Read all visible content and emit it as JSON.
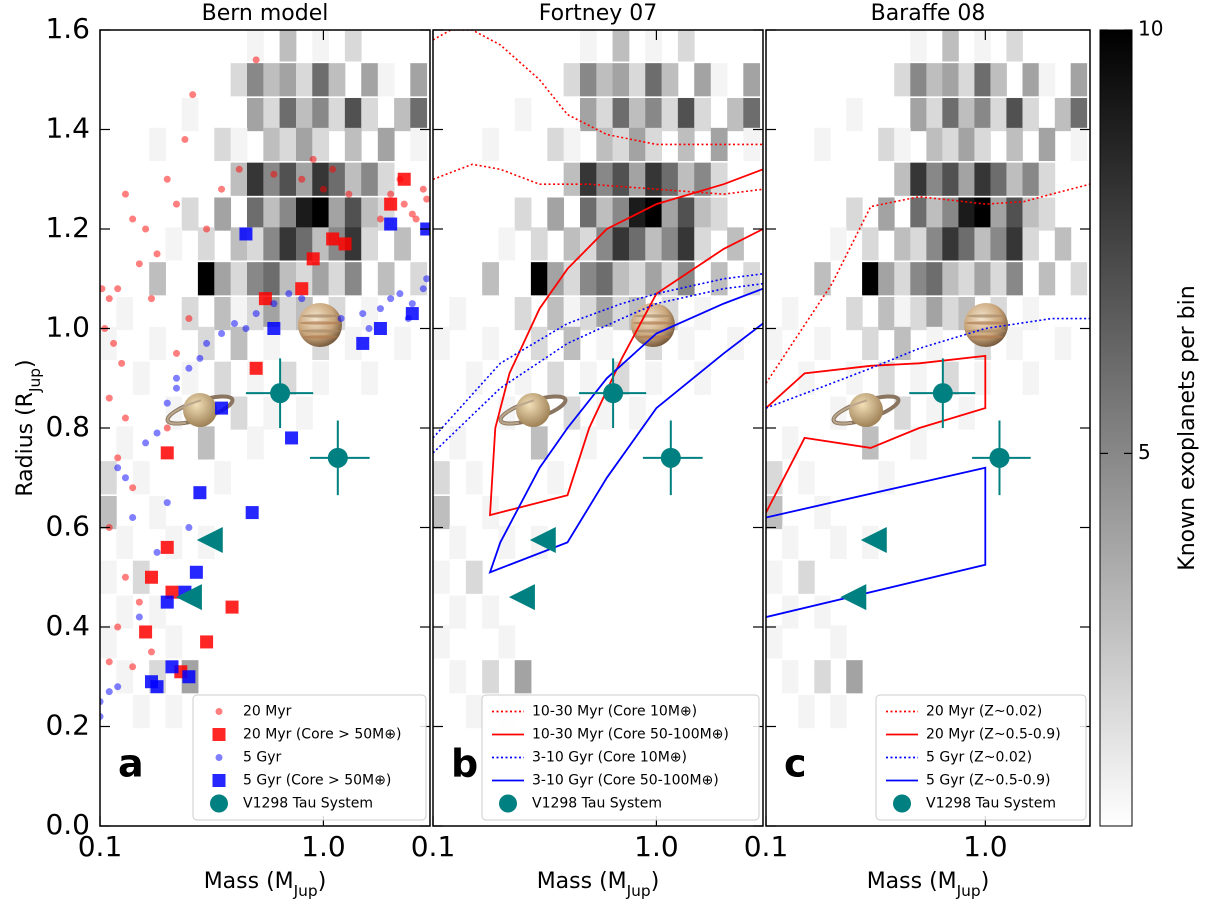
{
  "colorbar": {
    "label": "Known exoplanets per bin",
    "clim": [
      0.6,
      10
    ],
    "ticks": [
      5,
      10
    ],
    "cmap_low": "#ffffff",
    "cmap_high": "#000000"
  },
  "heatmap": {
    "mass": [
      0.496,
      0.694,
      0.972,
      1.36,
      0.419,
      0.496,
      0.587,
      0.694,
      0.822,
      0.972,
      1.15,
      1.61,
      1.91,
      2.67,
      0.253,
      0.496,
      0.587,
      0.694,
      0.822,
      0.972,
      1.15,
      1.36,
      1.61,
      2.26,
      2.67,
      0.181,
      0.354,
      0.419,
      0.587,
      0.694,
      0.822,
      0.972,
      1.36,
      1.91,
      2.67,
      0.419,
      0.496,
      0.587,
      0.694,
      0.822,
      0.972,
      1.15,
      1.36,
      1.61,
      1.91,
      0.253,
      0.354,
      0.496,
      0.587,
      0.694,
      0.822,
      0.972,
      1.15,
      1.36,
      1.61,
      1.91,
      0.214,
      0.299,
      0.419,
      0.496,
      0.587,
      0.694,
      0.822,
      0.972,
      1.15,
      1.36,
      1.61,
      2.26,
      0.181,
      0.299,
      0.354,
      0.419,
      0.496,
      0.587,
      0.694,
      0.822,
      0.972,
      1.15,
      1.36,
      1.91,
      2.67,
      0.129,
      0.253,
      0.354,
      0.419,
      0.496,
      0.587,
      0.694,
      0.822,
      1.15,
      1.61,
      0.109,
      0.181,
      0.299,
      0.419,
      0.587,
      0.972,
      1.36,
      2.26,
      0.153,
      0.253,
      0.354,
      0.496,
      0.694,
      0.972,
      1.61,
      0.214,
      0.419,
      0.587,
      0.822,
      0.129,
      0.299,
      0.496,
      0.109,
      0.153,
      0.354,
      0.109,
      0.181,
      0.129,
      0.214,
      0.299,
      0.109,
      0.153,
      0.129,
      0.181,
      0.109,
      0.214,
      0.129,
      0.181,
      0.253,
      0.153,
      0.214
    ],
    "radius": [
      1.57,
      1.57,
      1.57,
      1.57,
      1.5,
      1.5,
      1.5,
      1.5,
      1.5,
      1.5,
      1.5,
      1.5,
      1.5,
      1.5,
      1.43,
      1.43,
      1.43,
      1.43,
      1.43,
      1.43,
      1.43,
      1.43,
      1.43,
      1.43,
      1.43,
      1.37,
      1.37,
      1.37,
      1.37,
      1.37,
      1.37,
      1.37,
      1.37,
      1.37,
      1.37,
      1.3,
      1.3,
      1.3,
      1.3,
      1.3,
      1.3,
      1.3,
      1.3,
      1.3,
      1.3,
      1.23,
      1.23,
      1.23,
      1.23,
      1.23,
      1.23,
      1.23,
      1.23,
      1.23,
      1.23,
      1.23,
      1.17,
      1.17,
      1.17,
      1.17,
      1.17,
      1.17,
      1.17,
      1.17,
      1.17,
      1.17,
      1.17,
      1.17,
      1.1,
      1.1,
      1.1,
      1.1,
      1.1,
      1.1,
      1.1,
      1.1,
      1.1,
      1.1,
      1.1,
      1.1,
      1.1,
      1.03,
      1.03,
      1.03,
      1.03,
      1.03,
      1.03,
      1.03,
      1.03,
      1.03,
      1.03,
      0.97,
      0.97,
      0.97,
      0.97,
      0.97,
      0.97,
      0.97,
      0.97,
      0.9,
      0.9,
      0.9,
      0.9,
      0.9,
      0.9,
      0.9,
      0.83,
      0.83,
      0.83,
      0.83,
      0.77,
      0.77,
      0.77,
      0.7,
      0.7,
      0.7,
      0.63,
      0.63,
      0.57,
      0.57,
      0.57,
      0.5,
      0.5,
      0.43,
      0.43,
      0.37,
      0.37,
      0.3,
      0.3,
      0.3,
      0.23,
      0.23
    ],
    "counts": [
      1,
      3,
      1,
      2,
      2,
      5,
      3,
      4,
      2,
      6,
      3,
      4,
      1,
      4,
      1,
      4,
      2,
      6,
      3,
      5,
      2,
      7,
      2,
      3,
      6,
      1,
      2,
      1,
      3,
      2,
      4,
      2,
      3,
      4,
      1,
      3,
      8,
      5,
      7,
      4,
      8,
      6,
      3,
      5,
      2,
      2,
      4,
      6,
      3,
      5,
      9,
      10,
      4,
      7,
      3,
      2,
      1,
      2,
      3,
      2,
      5,
      8,
      6,
      3,
      5,
      8,
      2,
      3,
      3,
      10,
      4,
      2,
      5,
      6,
      3,
      2,
      4,
      2,
      5,
      3,
      2,
      1,
      2,
      3,
      1,
      2,
      4,
      2,
      3,
      2,
      1,
      1,
      1,
      2,
      3,
      1,
      2,
      1,
      1,
      1,
      1,
      2,
      1,
      2,
      1,
      1,
      1,
      2,
      1,
      1,
      1,
      3,
      1,
      2,
      1,
      1,
      3,
      1,
      1,
      1,
      1,
      1,
      2,
      1,
      1,
      1,
      1,
      1,
      2,
      4,
      1,
      1
    ]
  },
  "chart_data": [
    {
      "type": "scatter",
      "title": "Bern model",
      "label": "a",
      "xlabel": [
        "Mass (M",
        "Jup",
        ")"
      ],
      "ylabel": [
        "Radius (R",
        "Jup",
        ")"
      ],
      "xlim": [
        0.1,
        3
      ],
      "ylim": [
        0,
        1.6
      ],
      "log_x": true,
      "xticks": [
        0.1,
        {
          "value": 1,
          "label": "1.0"
        }
      ],
      "yticks": [
        {
          "value": 0,
          "label": "0.0"
        },
        0.2,
        0.4,
        0.6,
        0.8,
        {
          "value": 1,
          "label": "1.0"
        },
        1.2,
        1.4,
        1.6
      ],
      "legend": "lower right",
      "series": [
        {
          "name": "20 Myr",
          "marker": "circle",
          "color": "#ff0000",
          "alpha": 0.5,
          "x": [
            0.102,
            0.11,
            0.12,
            0.105,
            0.115,
            0.13,
            0.14,
            0.125,
            0.11,
            0.13,
            0.15,
            0.16,
            0.17,
            0.18,
            0.2,
            0.22,
            0.24,
            0.26,
            0.3,
            0.35,
            0.42,
            0.5,
            0.12,
            0.14,
            0.11,
            0.13,
            0.12,
            0.15,
            0.11,
            0.14,
            0.17,
            0.2,
            0.22,
            0.25,
            0.6,
            0.8,
            1.0,
            1.3,
            2.0,
            2.3,
            2.5,
            2.8,
            1.8,
            2.2,
            2.6,
            0.9,
            1.1,
            2.9
          ],
          "values": [
            1.08,
            1.06,
            1.08,
            1.0,
            0.97,
            1.27,
            1.22,
            0.93,
            0.86,
            0.82,
            1.13,
            1.2,
            1.06,
            1.15,
            1.3,
            1.25,
            1.38,
            1.47,
            1.2,
            1.28,
            1.32,
            1.54,
            0.74,
            0.68,
            0.6,
            0.5,
            0.4,
            0.45,
            0.33,
            0.32,
            0.35,
            0.8,
            0.95,
            1.02,
            1.31,
            1.3,
            1.28,
            1.27,
            1.27,
            1.25,
            1.23,
            1.28,
            1.22,
            1.3,
            1.22,
            1.34,
            1.32,
            1.26
          ]
        },
        {
          "name": "20 Myr (Core > 50M⊕)",
          "marker": "square",
          "color": "#ff0000",
          "alpha": 0.85,
          "x": [
            0.39,
            0.3,
            0.2,
            0.2,
            0.17,
            0.16,
            0.21,
            0.23,
            0.5,
            0.55,
            0.8,
            0.9,
            1.1,
            1.25,
            2.0,
            2.3
          ],
          "values": [
            0.44,
            0.37,
            0.75,
            0.56,
            0.5,
            0.39,
            0.47,
            0.31,
            0.92,
            1.06,
            1.08,
            1.14,
            1.18,
            1.17,
            1.25,
            1.3
          ]
        },
        {
          "name": "5 Gyr",
          "marker": "circle",
          "color": "#0000ff",
          "alpha": 0.5,
          "x": [
            0.1,
            0.11,
            0.12,
            0.1,
            0.13,
            0.12,
            0.14,
            0.16,
            0.18,
            0.2,
            0.22,
            0.25,
            0.3,
            0.35,
            0.4,
            0.5,
            0.6,
            0.8,
            1.2,
            1.5,
            1.8,
            2.0,
            2.2,
            2.5,
            2.8,
            1.6,
            2.4,
            0.2,
            0.25,
            0.15,
            0.18,
            0.22,
            0.28,
            0.45,
            0.7,
            2.9
          ],
          "values": [
            0.25,
            0.27,
            0.28,
            0.22,
            0.7,
            0.72,
            0.62,
            0.77,
            0.79,
            0.85,
            0.9,
            0.92,
            0.97,
            0.99,
            1.01,
            1.03,
            1.05,
            1.06,
            1.02,
            1.03,
            1.04,
            1.06,
            1.07,
            1.05,
            1.08,
            1.0,
            1.02,
            0.65,
            0.6,
            0.42,
            0.55,
            0.88,
            0.94,
            1.0,
            1.07,
            1.1
          ]
        },
        {
          "name": "5 Gyr (Core > 50M⊕)",
          "marker": "square",
          "color": "#0000ff",
          "alpha": 0.85,
          "x": [
            0.17,
            0.18,
            0.21,
            0.25,
            0.2,
            0.27,
            0.24,
            0.28,
            0.35,
            0.48,
            0.72,
            0.45,
            0.6,
            1.5,
            2.0,
            2.9,
            2.5,
            1.8
          ],
          "values": [
            0.29,
            0.28,
            0.32,
            0.3,
            0.45,
            0.51,
            0.47,
            0.67,
            0.84,
            0.63,
            0.78,
            1.19,
            1.0,
            0.97,
            1.21,
            1.2,
            1.03,
            1.0
          ]
        },
        {
          "name": "V1298 Tau System",
          "marker": "circle",
          "color": "#008080",
          "alpha": 1,
          "x": [
            0.64,
            1.16,
            0.31,
            0.25
          ],
          "values": [
            0.87,
            0.74,
            0.575,
            0.46
          ],
          "xerr": [
            [
              0.19,
              0.26
            ],
            [
              0.29,
              0.45
            ],
            null,
            null
          ],
          "yerr": [
            0.07,
            0.075,
            null,
            null
          ],
          "upper_limit": [
            false,
            false,
            true,
            true
          ]
        }
      ]
    },
    {
      "type": "line",
      "title": "Fortney 07",
      "label": "b",
      "xlabel": [
        "Mass (M",
        "Jup",
        ")"
      ],
      "xlim": [
        0.1,
        3
      ],
      "ylim": [
        0,
        1.6
      ],
      "log_x": true,
      "xticks": [
        0.1,
        {
          "value": 1,
          "label": "1.0"
        }
      ],
      "legend": "lower right",
      "series": [
        {
          "name": "10-30 Myr (Core 10M⊕)",
          "style": "dotted",
          "color": "#ff0000",
          "x": [
            0.1,
            0.12,
            0.15,
            0.2,
            0.3,
            0.4,
            0.6,
            1.0,
            2.0,
            3.0,
            null,
            0.1,
            0.15,
            0.2,
            0.3,
            0.5,
            1.0,
            2.0,
            3.0
          ],
          "values": [
            1.58,
            1.6,
            1.6,
            1.57,
            1.5,
            1.43,
            1.39,
            1.37,
            1.37,
            1.37,
            null,
            1.3,
            1.33,
            1.32,
            1.29,
            1.29,
            1.28,
            1.27,
            1.28
          ]
        },
        {
          "name": "10-30 Myr (Core 50-100M⊕)",
          "style": "solid",
          "color": "#ff0000",
          "x": [
            3.0,
            2.0,
            1.0,
            0.6,
            0.4,
            0.3,
            0.22,
            0.19,
            0.18,
            0.4,
            0.5,
            0.7,
            1.0,
            2.0,
            3.0
          ],
          "values": [
            1.32,
            1.29,
            1.25,
            1.2,
            1.12,
            1.04,
            0.91,
            0.8,
            0.625,
            0.665,
            0.8,
            0.94,
            1.07,
            1.16,
            1.2
          ]
        },
        {
          "name": "3-10 Gyr (Core 10M⊕)",
          "style": "dotted",
          "color": "#0000ff",
          "x": [
            0.1,
            0.2,
            0.4,
            0.7,
            1.0,
            2.0,
            3.0,
            null,
            0.1,
            0.2,
            0.4,
            0.7,
            1.0,
            2.0,
            3.0
          ],
          "values": [
            0.75,
            0.88,
            0.97,
            1.02,
            1.05,
            1.08,
            1.09,
            null,
            0.78,
            0.93,
            1.01,
            1.05,
            1.07,
            1.1,
            1.11
          ]
        },
        {
          "name": "3-10 Gyr (Core 50-100M⊕)",
          "style": "solid",
          "color": "#0000ff",
          "x": [
            3.0,
            2.0,
            1.0,
            0.6,
            0.4,
            0.3,
            0.2,
            0.18,
            0.4,
            0.6,
            1.0,
            2.0,
            3.0
          ],
          "values": [
            1.08,
            1.05,
            0.99,
            0.9,
            0.8,
            0.72,
            0.57,
            0.51,
            0.57,
            0.7,
            0.84,
            0.95,
            1.01
          ]
        },
        {
          "name": "V1298 Tau System",
          "marker": "circle",
          "color": "#008080",
          "alpha": 1,
          "x": [
            0.64,
            1.16,
            0.31,
            0.25
          ],
          "values": [
            0.87,
            0.74,
            0.575,
            0.46
          ],
          "xerr": [
            [
              0.19,
              0.26
            ],
            [
              0.29,
              0.45
            ],
            null,
            null
          ],
          "yerr": [
            0.07,
            0.075,
            null,
            null
          ],
          "upper_limit": [
            false,
            false,
            true,
            true
          ]
        }
      ]
    },
    {
      "type": "line",
      "title": "Baraffe 08",
      "label": "c",
      "xlabel": [
        "Mass (M",
        "Jup",
        ")"
      ],
      "xlim": [
        0.1,
        3
      ],
      "ylim": [
        0,
        1.6
      ],
      "log_x": true,
      "xticks": [
        0.1,
        {
          "value": 1,
          "label": "1.0"
        }
      ],
      "legend": "lower right",
      "series": [
        {
          "name": "20 Myr (Z~0.02)",
          "style": "dotted",
          "color": "#ff0000",
          "x": [
            0.1,
            0.2,
            0.3,
            0.5,
            0.8,
            1.0,
            1.5,
            2.0,
            3.0
          ],
          "values": [
            0.89,
            1.09,
            1.245,
            1.265,
            1.255,
            1.25,
            1.255,
            1.27,
            1.29
          ]
        },
        {
          "name": "20 Myr (Z~0.5-0.9)",
          "style": "solid",
          "color": "#ff0000",
          "x": [
            0.1,
            0.15,
            0.3,
            0.5,
            1.0,
            1.0,
            0.5,
            0.3,
            0.15,
            0.1
          ],
          "values": [
            0.63,
            0.78,
            0.76,
            0.8,
            0.84,
            0.945,
            0.93,
            0.925,
            0.91,
            0.84
          ]
        },
        {
          "name": "5 Gyr (Z~0.02)",
          "style": "dotted",
          "color": "#0000ff",
          "x": [
            0.1,
            0.2,
            0.3,
            0.5,
            1.0,
            2.0,
            3.0
          ],
          "values": [
            0.84,
            0.89,
            0.92,
            0.96,
            1.0,
            1.02,
            1.02
          ]
        },
        {
          "name": "5 Gyr (Z~0.5-0.9)",
          "style": "solid",
          "color": "#0000ff",
          "x": [
            0.1,
            0.5,
            1.0,
            1.0,
            0.1
          ],
          "values": [
            0.62,
            0.69,
            0.72,
            0.525,
            0.42
          ]
        },
        {
          "name": "V1298 Tau System",
          "marker": "circle",
          "color": "#008080",
          "alpha": 1,
          "x": [
            0.64,
            1.16,
            0.31,
            0.25
          ],
          "values": [
            0.87,
            0.74,
            0.575,
            0.46
          ],
          "xerr": [
            [
              0.19,
              0.26
            ],
            [
              0.29,
              0.45
            ],
            null,
            null
          ],
          "yerr": [
            0.07,
            0.075,
            null,
            null
          ],
          "upper_limit": [
            false,
            false,
            true,
            true
          ]
        }
      ]
    }
  ]
}
